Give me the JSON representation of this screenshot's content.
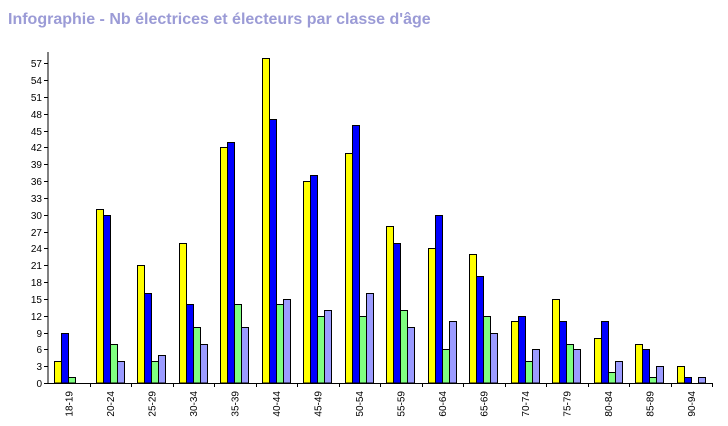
{
  "title": "Infographie - Nb électrices et électeurs par classe d'âge",
  "chart_data": {
    "type": "bar",
    "title": "Infographie - Nb électrices et électeurs par classe d'âge",
    "xlabel": "",
    "ylabel": "",
    "ylim": [
      0,
      59
    ],
    "yticks": [
      0,
      3,
      6,
      9,
      12,
      15,
      18,
      21,
      24,
      27,
      30,
      33,
      36,
      39,
      42,
      45,
      48,
      51,
      54,
      57
    ],
    "grid": false,
    "legend": "none",
    "categories": [
      "18-19",
      "20-24",
      "25-29",
      "30-34",
      "35-39",
      "40-44",
      "45-49",
      "50-54",
      "55-59",
      "60-64",
      "65-69",
      "70-74",
      "75-79",
      "80-84",
      "85-89",
      "90-94"
    ],
    "series": [
      {
        "color": "#ffff00",
        "values": [
          4,
          31,
          21,
          25,
          42,
          58,
          36,
          41,
          28,
          24,
          23,
          11,
          15,
          8,
          7,
          3
        ]
      },
      {
        "color": "#0000ff",
        "values": [
          9,
          30,
          16,
          14,
          43,
          47,
          37,
          46,
          25,
          30,
          19,
          12,
          11,
          11,
          6,
          1
        ]
      },
      {
        "color": "#80ff80",
        "values": [
          1,
          7,
          4,
          10,
          14,
          14,
          12,
          12,
          13,
          6,
          12,
          4,
          7,
          2,
          1,
          0
        ]
      },
      {
        "color": "#9b9bff",
        "values": [
          0,
          4,
          5,
          7,
          10,
          15,
          13,
          16,
          10,
          11,
          9,
          6,
          6,
          4,
          3,
          1
        ]
      }
    ]
  }
}
